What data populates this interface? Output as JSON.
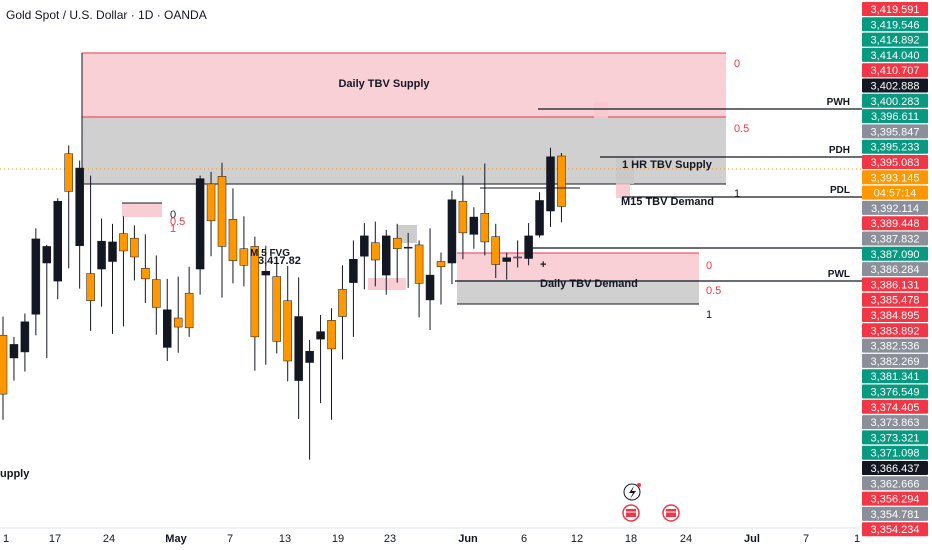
{
  "header": {
    "title": "Gold Spot / U.S. Dollar · 1D · OANDA"
  },
  "chart_data": {
    "type": "candlestick",
    "price_range": [
      3351.5,
      3420.5
    ],
    "x_ticks": [
      "1",
      "17",
      "24",
      "May",
      "7",
      "13",
      "19",
      "23",
      "Jun",
      "6",
      "12",
      "18",
      "24",
      "Jul",
      "7",
      "1"
    ],
    "price_labels": [
      {
        "text": "3,419.591",
        "color": "#f23645"
      },
      {
        "text": "3,419.546",
        "color": "#089981"
      },
      {
        "text": "3,414.892",
        "color": "#089981"
      },
      {
        "text": "3,414.040",
        "color": "#089981"
      },
      {
        "text": "3,410.707",
        "color": "#f23645"
      },
      {
        "text": "3,402.888",
        "color": "#131722"
      },
      {
        "text": "3,400.283",
        "color": "#089981"
      },
      {
        "text": "3,396.611",
        "color": "#089981"
      },
      {
        "text": "3,395.847",
        "color": "#8a8f9a"
      },
      {
        "text": "3,395.233",
        "color": "#089981"
      },
      {
        "text": "3,395.083",
        "color": "#f23645"
      },
      {
        "text": "3,393.145",
        "color": "#ff9800"
      },
      {
        "text": "04:57:14",
        "color": "#ff9800"
      },
      {
        "text": "3,392.114",
        "color": "#8a8f9a"
      },
      {
        "text": "3,389.448",
        "color": "#f23645"
      },
      {
        "text": "3,387.832",
        "color": "#8a8f9a"
      },
      {
        "text": "3,387.090",
        "color": "#089981"
      },
      {
        "text": "3,386.284",
        "color": "#8a8f9a"
      },
      {
        "text": "3,386.131",
        "color": "#f23645"
      },
      {
        "text": "3,385.478",
        "color": "#f23645"
      },
      {
        "text": "3,384.895",
        "color": "#f23645"
      },
      {
        "text": "3,383.892",
        "color": "#f23645"
      },
      {
        "text": "3,382.536",
        "color": "#8a8f9a"
      },
      {
        "text": "3,382.269",
        "color": "#8a8f9a"
      },
      {
        "text": "3,381.341",
        "color": "#089981"
      },
      {
        "text": "3,376.549",
        "color": "#089981"
      },
      {
        "text": "3,374.405",
        "color": "#f23645"
      },
      {
        "text": "3,373.863",
        "color": "#8a8f9a"
      },
      {
        "text": "3,373.321",
        "color": "#089981"
      },
      {
        "text": "3,371.098",
        "color": "#089981"
      },
      {
        "text": "3,366.437",
        "color": "#131722"
      },
      {
        "text": "3,362.666",
        "color": "#8a8f9a"
      },
      {
        "text": "3,356.294",
        "color": "#f23645"
      },
      {
        "text": "3,354.781",
        "color": "#8a8f9a"
      },
      {
        "text": "3,354.234",
        "color": "#f23645"
      }
    ],
    "zones": [
      {
        "label": "Daily TBV Supply",
        "kind": "supply"
      },
      {
        "label": "1 HR TBV Supply",
        "kind": "label"
      },
      {
        "label": "M15 TBV Demand",
        "kind": "label"
      },
      {
        "label": "Daily TBV Demand",
        "kind": "demand"
      }
    ],
    "levels": [
      {
        "label": "PWH",
        "price": 3397.3
      },
      {
        "label": "PDH",
        "price": 3394.1
      },
      {
        "label": "PDL",
        "price": 3391.6
      },
      {
        "label": "PWL",
        "price": 3384.7
      }
    ],
    "fib_labels": [
      "0",
      "0.5",
      "1",
      "0",
      "0.5",
      "1",
      "0",
      "0.5",
      "1"
    ],
    "partial_texts": [
      "upply",
      "M 5 FVG",
      "3,417.82",
      "+"
    ],
    "candles": [
      {
        "o": 3376.0,
        "h": 3378.5,
        "l": 3364.8,
        "c": 3368.2
      },
      {
        "o": 3373.0,
        "h": 3375.8,
        "l": 3370.0,
        "c": 3374.8
      },
      {
        "o": 3373.8,
        "h": 3378.9,
        "l": 3371.2,
        "c": 3377.8
      },
      {
        "o": 3378.8,
        "h": 3390.2,
        "l": 3376.0,
        "c": 3388.8
      },
      {
        "o": 3385.6,
        "h": 3388.0,
        "l": 3373.0,
        "c": 3387.8
      },
      {
        "o": 3383.2,
        "h": 3394.2,
        "l": 3380.8,
        "c": 3393.8
      },
      {
        "o": 3400.1,
        "h": 3401.2,
        "l": 3384.9,
        "c": 3395.1
      },
      {
        "o": 3387.9,
        "h": 3399.2,
        "l": 3382.2,
        "c": 3398.2
      },
      {
        "o": 3384.2,
        "h": 3397.2,
        "l": 3376.6,
        "c": 3380.6
      },
      {
        "o": 3384.8,
        "h": 3391.5,
        "l": 3379.8,
        "c": 3388.5
      },
      {
        "o": 3385.8,
        "h": 3390.8,
        "l": 3376.2,
        "c": 3388.4
      },
      {
        "o": 3389.5,
        "h": 3391.8,
        "l": 3377.2,
        "c": 3387.2
      },
      {
        "o": 3388.9,
        "h": 3390.6,
        "l": 3383.3,
        "c": 3386.4
      },
      {
        "o": 3384.9,
        "h": 3389.4,
        "l": 3380.3,
        "c": 3383.5
      },
      {
        "o": 3383.4,
        "h": 3386.6,
        "l": 3376.1,
        "c": 3379.7
      },
      {
        "o": 3374.4,
        "h": 3383.5,
        "l": 3372.6,
        "c": 3379.4
      },
      {
        "o": 3378.3,
        "h": 3383.8,
        "l": 3373.7,
        "c": 3377.1
      },
      {
        "o": 3381.6,
        "h": 3385.1,
        "l": 3375.8,
        "c": 3377.0
      },
      {
        "o": 3384.8,
        "h": 3397.2,
        "l": 3381.4,
        "c": 3396.8
      },
      {
        "o": 3396.1,
        "h": 3397.7,
        "l": 3386.5,
        "c": 3391.2
      },
      {
        "o": 3397.1,
        "h": 3398.9,
        "l": 3381.0,
        "c": 3387.8
      },
      {
        "o": 3391.4,
        "h": 3395.5,
        "l": 3382.9,
        "c": 3385.9
      },
      {
        "o": 3387.5,
        "h": 3391.8,
        "l": 3382.5,
        "c": 3385.3
      },
      {
        "o": 3387.8,
        "h": 3389.1,
        "l": 3371.3,
        "c": 3375.8
      },
      {
        "o": 3384.0,
        "h": 3387.9,
        "l": 3372.1,
        "c": 3384.5
      },
      {
        "o": 3383.8,
        "h": 3386.4,
        "l": 3373.6,
        "c": 3375.2
      },
      {
        "o": 3380.6,
        "h": 3385.2,
        "l": 3369.9,
        "c": 3372.6
      },
      {
        "o": 3370.0,
        "h": 3383.7,
        "l": 3364.9,
        "c": 3378.5
      },
      {
        "o": 3372.4,
        "h": 3375.4,
        "l": 3359.5,
        "c": 3373.9
      },
      {
        "o": 3375.5,
        "h": 3378.7,
        "l": 3367.0,
        "c": 3376.5
      },
      {
        "o": 3378.0,
        "h": 3379.6,
        "l": 3364.8,
        "c": 3374.2
      },
      {
        "o": 3382.1,
        "h": 3385.3,
        "l": 3372.8,
        "c": 3378.5
      },
      {
        "o": 3383.0,
        "h": 3388.6,
        "l": 3375.8,
        "c": 3386.1
      },
      {
        "o": 3386.5,
        "h": 3390.9,
        "l": 3382.1,
        "c": 3389.2
      },
      {
        "o": 3388.3,
        "h": 3391.1,
        "l": 3382.5,
        "c": 3386.0
      },
      {
        "o": 3384.0,
        "h": 3390.0,
        "l": 3381.4,
        "c": 3389.2
      },
      {
        "o": 3388.9,
        "h": 3390.8,
        "l": 3383.0,
        "c": 3387.5
      },
      {
        "o": 3387.6,
        "h": 3389.6,
        "l": 3382.3,
        "c": 3387.7
      },
      {
        "o": 3388.0,
        "h": 3388.6,
        "l": 3378.4,
        "c": 3382.9
      },
      {
        "o": 3380.7,
        "h": 3390.2,
        "l": 3376.7,
        "c": 3384.0
      },
      {
        "o": 3385.8,
        "h": 3387.0,
        "l": 3380.1,
        "c": 3385.1
      },
      {
        "o": 3385.6,
        "h": 3395.2,
        "l": 3382.8,
        "c": 3394.0
      },
      {
        "o": 3393.8,
        "h": 3397.2,
        "l": 3386.1,
        "c": 3389.6
      },
      {
        "o": 3389.4,
        "h": 3393.0,
        "l": 3387.5,
        "c": 3391.7
      },
      {
        "o": 3392.2,
        "h": 3398.8,
        "l": 3386.6,
        "c": 3388.4
      },
      {
        "o": 3389.1,
        "h": 3390.8,
        "l": 3383.6,
        "c": 3385.4
      },
      {
        "o": 3385.8,
        "h": 3387.0,
        "l": 3383.4,
        "c": 3386.3
      },
      {
        "o": 3386.4,
        "h": 3388.6,
        "l": 3385.0,
        "c": 3386.3
      },
      {
        "o": 3386.2,
        "h": 3390.9,
        "l": 3385.3,
        "c": 3389.2
      },
      {
        "o": 3389.3,
        "h": 3395.0,
        "l": 3389.0,
        "c": 3393.9
      },
      {
        "o": 3392.5,
        "h": 3400.9,
        "l": 3390.4,
        "c": 3399.7
      },
      {
        "o": 3399.8,
        "h": 3400.2,
        "l": 3391.0,
        "c": 3393.1
      }
    ]
  }
}
